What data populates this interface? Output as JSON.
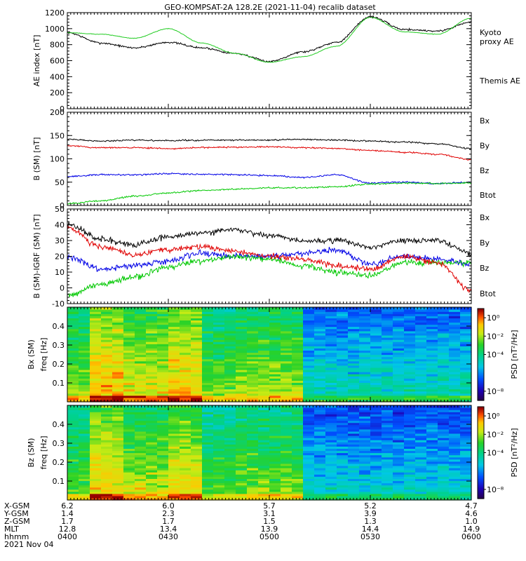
{
  "title": "GEO-KOMPSAT-2A 128.2E (2021-11-04) recalib dataset",
  "colors": {
    "black": "#000000",
    "red": "#e00000",
    "green": "#00c800",
    "blue": "#0000e6",
    "kyoto": "#22cc22"
  },
  "chart_data": [
    {
      "type": "line",
      "ylabel": "AE index [nT]",
      "yticks": [
        "0",
        "200",
        "400",
        "600",
        "800",
        "1000",
        "1200"
      ],
      "ylim": [
        0,
        1200
      ],
      "x": [
        "0400",
        "0410",
        "0420",
        "0430",
        "0440",
        "0450",
        "0500",
        "0510",
        "0520",
        "0530",
        "0540",
        "0550",
        "0600"
      ],
      "series": [
        {
          "name": "Themis AE",
          "color": "#000000",
          "values": [
            950,
            820,
            760,
            830,
            760,
            690,
            590,
            710,
            830,
            1150,
            990,
            970,
            1080
          ]
        },
        {
          "name": "Kyoto proxy AE",
          "color": "#22cc22",
          "values": [
            950,
            930,
            880,
            1000,
            820,
            690,
            580,
            650,
            780,
            1140,
            960,
            930,
            1130
          ]
        }
      ],
      "legend": [
        {
          "text": "Kyoto",
          "color": "#22cc22"
        },
        {
          "text": "proxy AE",
          "color": "#22cc22"
        },
        {
          "text": "Themis AE",
          "color": "#000000"
        }
      ]
    },
    {
      "type": "line",
      "ylabel": "B (SM) [nT]",
      "yticks": [
        "0",
        "50",
        "100",
        "150",
        "200"
      ],
      "ylim": [
        0,
        200
      ],
      "x": [
        "0400",
        "0410",
        "0420",
        "0430",
        "0440",
        "0450",
        "0500",
        "0510",
        "0520",
        "0530",
        "0540",
        "0550",
        "0600"
      ],
      "series": [
        {
          "name": "Btot",
          "color": "#000000",
          "values": [
            142,
            138,
            140,
            139,
            140,
            140,
            140,
            142,
            140,
            138,
            136,
            132,
            122
          ]
        },
        {
          "name": "Bx",
          "color": "#0000e6",
          "values": [
            62,
            66,
            66,
            68,
            67,
            66,
            64,
            60,
            66,
            48,
            50,
            47,
            50
          ]
        },
        {
          "name": "By",
          "color": "#00c800",
          "values": [
            4,
            10,
            20,
            27,
            32,
            35,
            38,
            38,
            40,
            46,
            48,
            47,
            48
          ]
        },
        {
          "name": "Bz",
          "color": "#e00000",
          "values": [
            128,
            124,
            124,
            122,
            124,
            125,
            126,
            124,
            122,
            118,
            114,
            110,
            98
          ]
        }
      ],
      "legend": [
        {
          "text": "Bx",
          "color": "#0000e6"
        },
        {
          "text": "By",
          "color": "#00c800"
        },
        {
          "text": "Bz",
          "color": "#e00000"
        },
        {
          "text": "Btot",
          "color": "#000000"
        }
      ]
    },
    {
      "type": "line",
      "ylabel": "B (SM)-IGRF (SM) [nT]",
      "yticks": [
        "-10",
        "0",
        "10",
        "20",
        "30",
        "40",
        "50"
      ],
      "ylim": [
        -10,
        50
      ],
      "x": [
        "0400",
        "0410",
        "0420",
        "0430",
        "0440",
        "0450",
        "0500",
        "0510",
        "0520",
        "0530",
        "0540",
        "0550",
        "0600"
      ],
      "series": [
        {
          "name": "Btot",
          "color": "#000000",
          "values": [
            40,
            31,
            27,
            32,
            35,
            37,
            33,
            30,
            30,
            26,
            30,
            30,
            22
          ]
        },
        {
          "name": "Bx",
          "color": "#0000e6",
          "values": [
            20,
            12,
            14,
            17,
            22,
            20,
            20,
            22,
            24,
            15,
            20,
            18,
            15
          ]
        },
        {
          "name": "By",
          "color": "#00c800",
          "values": [
            -5,
            2,
            7,
            13,
            17,
            20,
            18,
            14,
            10,
            8,
            16,
            16,
            16
          ]
        },
        {
          "name": "Bz",
          "color": "#e00000",
          "values": [
            38,
            26,
            21,
            24,
            26,
            23,
            20,
            18,
            14,
            12,
            20,
            16,
            -2
          ]
        }
      ],
      "legend": [
        {
          "text": "Bx",
          "color": "#0000e6"
        },
        {
          "text": "By",
          "color": "#00c800"
        },
        {
          "text": "Bz",
          "color": "#e00000"
        },
        {
          "text": "Btot",
          "color": "#000000"
        }
      ]
    },
    {
      "type": "heatmap",
      "ylabel": "Bx (SM)",
      "ylabel2": "freq [Hz]",
      "yticks": [
        "0.1",
        "0.2",
        "0.3",
        "0.4"
      ],
      "ylim": [
        0,
        0.5
      ],
      "colorbar": {
        "label": "PSD [nT²/Hz]",
        "ticks": [
          "10⁰",
          "10⁻²",
          "10⁻⁴",
          "10⁻⁸"
        ],
        "exponents": [
          0,
          -2,
          -4,
          -8
        ]
      }
    },
    {
      "type": "heatmap",
      "ylabel": "Bz (SM)",
      "ylabel2": "freq [Hz]",
      "yticks": [
        "0.1",
        "0.2",
        "0.3",
        "0.4"
      ],
      "ylim": [
        0,
        0.5
      ],
      "colorbar": {
        "label": "PSD [nT²/Hz]",
        "ticks": [
          "10⁰",
          "10⁻²",
          "10⁻⁴",
          "10⁻⁸"
        ],
        "exponents": [
          0,
          -2,
          -4,
          -8
        ]
      }
    }
  ],
  "orbit_table": {
    "row_labels": [
      "X-GSM",
      "Y-GSM",
      "Z-GSM",
      "MLT",
      "hhmm"
    ],
    "columns": [
      [
        "6.2",
        "1.4",
        "1.7",
        "12.8",
        "0400"
      ],
      [
        "6.0",
        "2.3",
        "1.7",
        "13.4",
        "0430"
      ],
      [
        "5.7",
        "3.1",
        "1.5",
        "13.9",
        "0500"
      ],
      [
        "5.2",
        "3.9",
        "1.3",
        "14.4",
        "0530"
      ],
      [
        "4.7",
        "4.6",
        "1.0",
        "14.9",
        "0600"
      ]
    ],
    "date": "2021 Nov 04"
  }
}
